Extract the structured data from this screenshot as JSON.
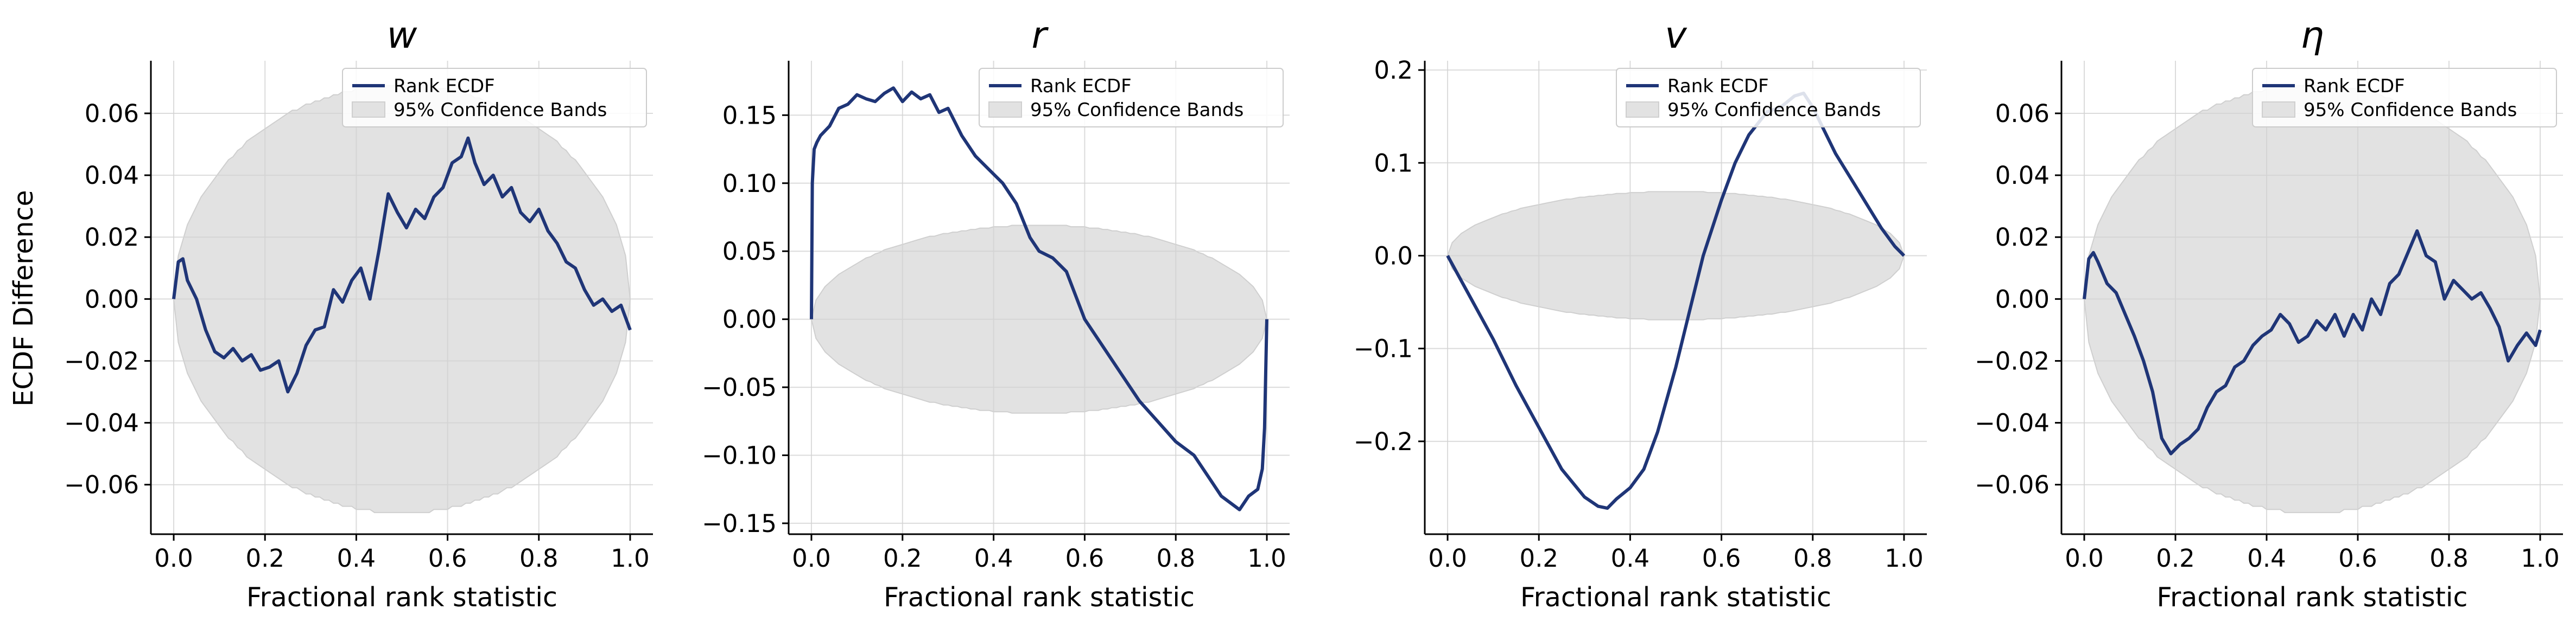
{
  "figure": {
    "ylabel": "ECDF Difference"
  },
  "chart_data": [
    {
      "type": "line",
      "title": "w",
      "xlabel": "Fractional rank statistic",
      "ylabel": "ECDF Difference",
      "xlim": [
        -0.05,
        1.05
      ],
      "ylim": [
        -0.076,
        0.077
      ],
      "xticks": [
        0.0,
        0.2,
        0.4,
        0.6,
        0.8,
        1.0
      ],
      "xtick_labels": [
        "0.0",
        "0.2",
        "0.4",
        "0.6",
        "0.8",
        "1.0"
      ],
      "yticks": [
        -0.06,
        -0.04,
        -0.02,
        0.0,
        0.02,
        0.04,
        0.06
      ],
      "ytick_labels": [
        "−0.06",
        "−0.04",
        "−0.02",
        "0.00",
        "0.02",
        "0.04",
        "0.06"
      ],
      "grid": true,
      "legend": {
        "placement": "upper-right",
        "entries": [
          "Rank ECDF",
          "95% Confidence Bands"
        ]
      },
      "band": {
        "center": 0.0,
        "half_width_max": 0.069,
        "shape": "ellipse",
        "range": [
          0,
          1
        ]
      },
      "series": [
        {
          "name": "Rank ECDF",
          "x": [
            0.0,
            0.01,
            0.02,
            0.03,
            0.05,
            0.07,
            0.09,
            0.11,
            0.13,
            0.15,
            0.17,
            0.19,
            0.21,
            0.23,
            0.25,
            0.27,
            0.29,
            0.31,
            0.33,
            0.35,
            0.37,
            0.39,
            0.41,
            0.43,
            0.45,
            0.47,
            0.49,
            0.51,
            0.53,
            0.55,
            0.57,
            0.59,
            0.61,
            0.63,
            0.645,
            0.66,
            0.68,
            0.7,
            0.72,
            0.74,
            0.76,
            0.78,
            0.8,
            0.82,
            0.84,
            0.86,
            0.88,
            0.9,
            0.92,
            0.94,
            0.96,
            0.98,
            1.0
          ],
          "y": [
            0.0,
            0.012,
            0.013,
            0.006,
            0.0,
            -0.01,
            -0.017,
            -0.019,
            -0.016,
            -0.02,
            -0.018,
            -0.023,
            -0.022,
            -0.02,
            -0.03,
            -0.024,
            -0.015,
            -0.01,
            -0.009,
            0.003,
            -0.001,
            0.006,
            0.01,
            0.0,
            0.016,
            0.034,
            0.028,
            0.023,
            0.029,
            0.026,
            0.033,
            0.036,
            0.044,
            0.046,
            0.052,
            0.044,
            0.037,
            0.04,
            0.033,
            0.036,
            0.028,
            0.025,
            0.029,
            0.022,
            0.018,
            0.012,
            0.01,
            0.003,
            -0.002,
            0.0,
            -0.004,
            -0.002,
            -0.01
          ]
        }
      ]
    },
    {
      "type": "line",
      "title": "r",
      "xlabel": "Fractional rank statistic",
      "ylabel": "",
      "xlim": [
        -0.05,
        1.05
      ],
      "ylim": [
        -0.158,
        0.19
      ],
      "xticks": [
        0.0,
        0.2,
        0.4,
        0.6,
        0.8,
        1.0
      ],
      "xtick_labels": [
        "0.0",
        "0.2",
        "0.4",
        "0.6",
        "0.8",
        "1.0"
      ],
      "yticks": [
        -0.15,
        -0.1,
        -0.05,
        0.0,
        0.05,
        0.1,
        0.15
      ],
      "ytick_labels": [
        "−0.15",
        "−0.10",
        "−0.05",
        "0.00",
        "0.05",
        "0.10",
        "0.15"
      ],
      "grid": true,
      "legend": {
        "placement": "upper-right",
        "entries": [
          "Rank ECDF",
          "95% Confidence Bands"
        ]
      },
      "band": {
        "center": 0.0,
        "half_width_max": 0.069,
        "shape": "ellipse",
        "range": [
          0,
          1
        ]
      },
      "series": [
        {
          "name": "Rank ECDF",
          "x": [
            0.0,
            0.002,
            0.006,
            0.012,
            0.02,
            0.04,
            0.06,
            0.08,
            0.1,
            0.12,
            0.14,
            0.16,
            0.18,
            0.2,
            0.22,
            0.24,
            0.26,
            0.28,
            0.3,
            0.33,
            0.36,
            0.39,
            0.42,
            0.45,
            0.48,
            0.5,
            0.53,
            0.56,
            0.6,
            0.64,
            0.68,
            0.72,
            0.76,
            0.8,
            0.84,
            0.88,
            0.9,
            0.92,
            0.94,
            0.96,
            0.98,
            0.99,
            0.995,
            1.0
          ],
          "y": [
            0.0,
            0.1,
            0.125,
            0.13,
            0.135,
            0.142,
            0.155,
            0.158,
            0.165,
            0.162,
            0.16,
            0.166,
            0.17,
            0.16,
            0.167,
            0.162,
            0.165,
            0.152,
            0.155,
            0.135,
            0.12,
            0.11,
            0.1,
            0.085,
            0.06,
            0.05,
            0.045,
            0.035,
            0.0,
            -0.02,
            -0.04,
            -0.06,
            -0.075,
            -0.09,
            -0.1,
            -0.12,
            -0.13,
            -0.135,
            -0.14,
            -0.13,
            -0.125,
            -0.11,
            -0.08,
            0.0
          ]
        }
      ]
    },
    {
      "type": "line",
      "title": "v",
      "xlabel": "Fractional rank statistic",
      "ylabel": "",
      "xlim": [
        -0.05,
        1.05
      ],
      "ylim": [
        -0.3,
        0.21
      ],
      "xticks": [
        0.0,
        0.2,
        0.4,
        0.6,
        0.8,
        1.0
      ],
      "xtick_labels": [
        "0.0",
        "0.2",
        "0.4",
        "0.6",
        "0.8",
        "1.0"
      ],
      "yticks": [
        -0.2,
        -0.1,
        0.0,
        0.1,
        0.2
      ],
      "ytick_labels": [
        "−0.2",
        "−0.1",
        "0.0",
        "0.1",
        "0.2"
      ],
      "grid": true,
      "legend": {
        "placement": "upper-right",
        "entries": [
          "Rank ECDF",
          "95% Confidence Bands"
        ]
      },
      "band": {
        "center": 0.0,
        "half_width_max": 0.069,
        "shape": "ellipse",
        "range": [
          0,
          1
        ]
      },
      "series": [
        {
          "name": "Rank ECDF",
          "x": [
            0.0,
            0.05,
            0.1,
            0.15,
            0.2,
            0.25,
            0.3,
            0.33,
            0.35,
            0.37,
            0.4,
            0.43,
            0.46,
            0.5,
            0.53,
            0.56,
            0.6,
            0.63,
            0.66,
            0.7,
            0.73,
            0.76,
            0.78,
            0.8,
            0.85,
            0.9,
            0.95,
            0.98,
            1.0
          ],
          "y": [
            0.0,
            -0.045,
            -0.09,
            -0.14,
            -0.185,
            -0.23,
            -0.26,
            -0.27,
            -0.272,
            -0.262,
            -0.25,
            -0.23,
            -0.19,
            -0.12,
            -0.06,
            0.0,
            0.06,
            0.1,
            0.13,
            0.155,
            0.16,
            0.172,
            0.175,
            0.16,
            0.11,
            0.07,
            0.03,
            0.01,
            0.0
          ]
        }
      ]
    },
    {
      "type": "line",
      "title": "η",
      "xlabel": "Fractional rank statistic",
      "ylabel": "",
      "xlim": [
        -0.05,
        1.05
      ],
      "ylim": [
        -0.076,
        0.077
      ],
      "xticks": [
        0.0,
        0.2,
        0.4,
        0.6,
        0.8,
        1.0
      ],
      "xtick_labels": [
        "0.0",
        "0.2",
        "0.4",
        "0.6",
        "0.8",
        "1.0"
      ],
      "yticks": [
        -0.06,
        -0.04,
        -0.02,
        0.0,
        0.02,
        0.04,
        0.06
      ],
      "ytick_labels": [
        "−0.06",
        "−0.04",
        "−0.02",
        "0.00",
        "0.02",
        "0.04",
        "0.06"
      ],
      "grid": true,
      "legend": {
        "placement": "upper-right",
        "entries": [
          "Rank ECDF",
          "95% Confidence Bands"
        ]
      },
      "band": {
        "center": 0.0,
        "half_width_max": 0.069,
        "shape": "ellipse",
        "range": [
          0,
          1
        ]
      },
      "series": [
        {
          "name": "Rank ECDF",
          "x": [
            0.0,
            0.01,
            0.02,
            0.03,
            0.05,
            0.07,
            0.09,
            0.11,
            0.13,
            0.15,
            0.17,
            0.19,
            0.21,
            0.23,
            0.25,
            0.27,
            0.29,
            0.31,
            0.33,
            0.35,
            0.37,
            0.39,
            0.41,
            0.43,
            0.45,
            0.47,
            0.49,
            0.51,
            0.53,
            0.55,
            0.57,
            0.59,
            0.61,
            0.63,
            0.65,
            0.67,
            0.69,
            0.71,
            0.73,
            0.75,
            0.77,
            0.79,
            0.81,
            0.83,
            0.85,
            0.87,
            0.89,
            0.91,
            0.93,
            0.95,
            0.97,
            0.99,
            1.0
          ],
          "y": [
            0.0,
            0.013,
            0.015,
            0.012,
            0.005,
            0.002,
            -0.005,
            -0.012,
            -0.02,
            -0.03,
            -0.045,
            -0.05,
            -0.047,
            -0.045,
            -0.042,
            -0.035,
            -0.03,
            -0.028,
            -0.022,
            -0.02,
            -0.015,
            -0.012,
            -0.01,
            -0.005,
            -0.008,
            -0.014,
            -0.012,
            -0.007,
            -0.01,
            -0.005,
            -0.012,
            -0.005,
            -0.01,
            0.0,
            -0.005,
            0.005,
            0.008,
            0.015,
            0.022,
            0.014,
            0.012,
            0.0,
            0.006,
            0.003,
            0.0,
            0.002,
            -0.003,
            -0.009,
            -0.02,
            -0.015,
            -0.011,
            -0.015,
            -0.01
          ]
        }
      ]
    }
  ]
}
